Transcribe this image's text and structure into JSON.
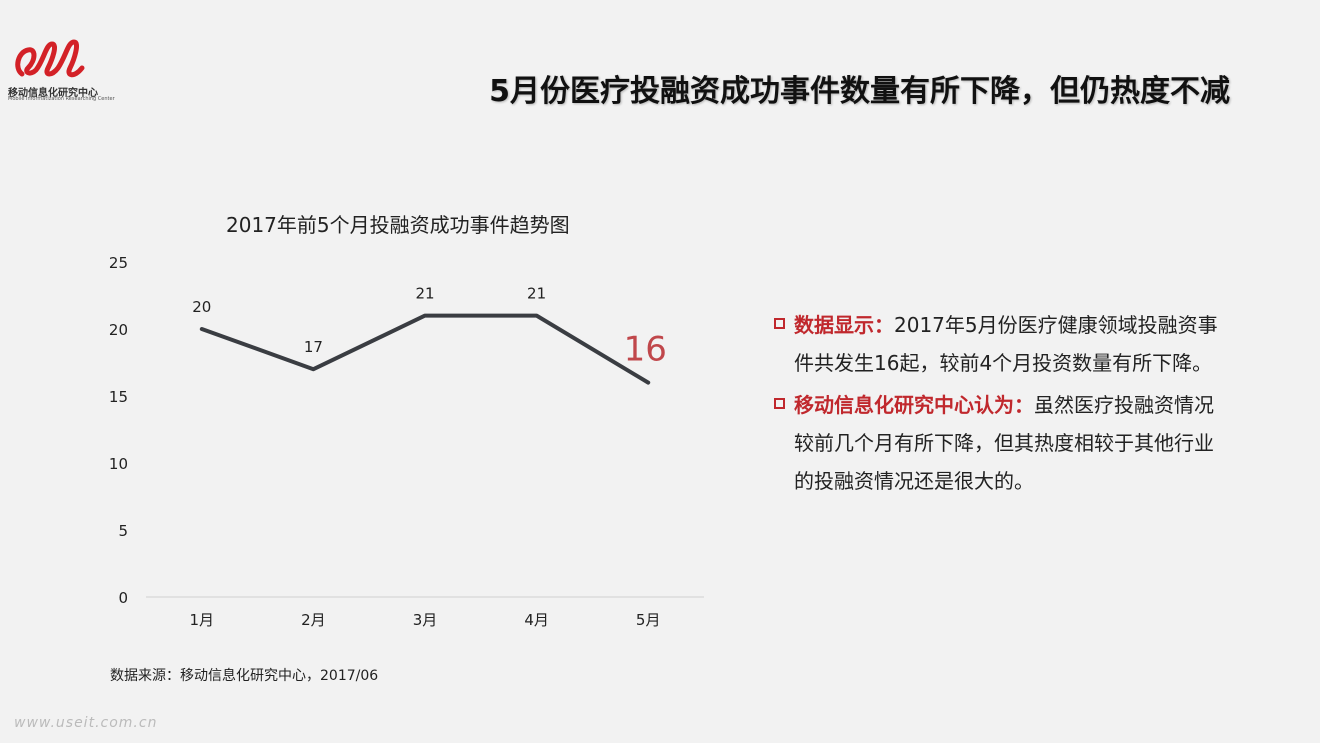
{
  "logo": {
    "cn": "移动信息化研究中心",
    "en": "Mobile Informatization Researching Center"
  },
  "page_title": "5月份医疗投融资成功事件数量有所下降，但仍热度不减",
  "colors": {
    "accent": "#c0282d",
    "line": "#3a3d42",
    "highlight_label": "#c0474b"
  },
  "chart_data": {
    "type": "line",
    "title": "2017年前5个月投融资成功事件趋势图",
    "categories": [
      "1月",
      "2月",
      "3月",
      "4月",
      "5月"
    ],
    "series": [
      {
        "values": [
          20,
          17,
          21,
          21,
          16
        ]
      }
    ],
    "ylim": [
      0,
      25
    ],
    "yticks": [
      0,
      5,
      10,
      15,
      20,
      25
    ],
    "data_labels": [
      "20",
      "17",
      "21",
      "21",
      "16"
    ],
    "highlighted_point_index": 4,
    "grid": false
  },
  "bullets": [
    {
      "lead": "数据显示：",
      "text": "2017年5月份医疗健康领域投融资事件共发生16起，较前4个月投资数量有所下降。"
    },
    {
      "lead": "移动信息化研究中心认为：",
      "text": "虽然医疗投融资情况较前几个月有所下降，但其热度相较于其他行业的投融资情况还是很大的。"
    }
  ],
  "source": "数据来源：移动信息化研究中心，2017/06",
  "watermark": "www.useit.com.cn"
}
